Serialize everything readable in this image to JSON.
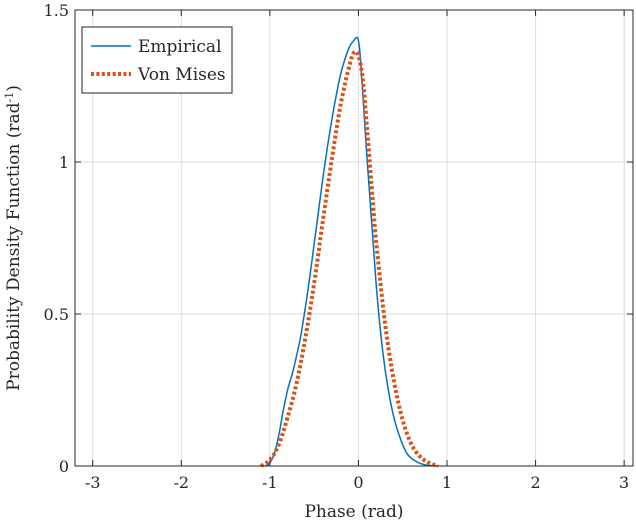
{
  "chart_data": {
    "type": "line",
    "xlabel": "Phase (rad)",
    "ylabel_main": "Probability Density Function (rad",
    "ylabel_sup": "-1",
    "ylabel_end": ")",
    "xlim": [
      -3.2,
      3.1
    ],
    "ylim": [
      0,
      1.5
    ],
    "xticks": [
      -3,
      -2,
      -1,
      0,
      1,
      2,
      3
    ],
    "xtick_labels": [
      "-3",
      "-2",
      "-1",
      "0",
      "1",
      "2",
      "3"
    ],
    "yticks": [
      0,
      0.5,
      1,
      1.5
    ],
    "ytick_labels": [
      "0",
      "0.5",
      "1",
      "1.5"
    ],
    "grid": true,
    "legend_position": "top-left",
    "series": [
      {
        "name": "Empirical",
        "color": "#0072BD",
        "style": "solid",
        "x": [
          -1.05,
          -1.0,
          -0.95,
          -0.9,
          -0.85,
          -0.8,
          -0.75,
          -0.7,
          -0.65,
          -0.6,
          -0.55,
          -0.5,
          -0.45,
          -0.4,
          -0.35,
          -0.3,
          -0.25,
          -0.2,
          -0.15,
          -0.1,
          -0.05,
          -0.02,
          0.0,
          0.02,
          0.05,
          0.1,
          0.15,
          0.2,
          0.25,
          0.3,
          0.35,
          0.4,
          0.45,
          0.5,
          0.55,
          0.6,
          0.65,
          0.7,
          0.75,
          0.8,
          0.85,
          0.9
        ],
        "y": [
          0.0,
          0.01,
          0.04,
          0.1,
          0.18,
          0.25,
          0.3,
          0.36,
          0.43,
          0.52,
          0.62,
          0.73,
          0.84,
          0.95,
          1.05,
          1.14,
          1.22,
          1.29,
          1.34,
          1.38,
          1.4,
          1.41,
          1.4,
          1.35,
          1.22,
          1.0,
          0.8,
          0.6,
          0.44,
          0.32,
          0.23,
          0.16,
          0.11,
          0.07,
          0.04,
          0.025,
          0.015,
          0.008,
          0.004,
          0.002,
          0.001,
          0.0
        ]
      },
      {
        "name": "Von Mises",
        "color": "#D95319",
        "style": "dotted",
        "x": [
          -1.1,
          -1.0,
          -0.9,
          -0.8,
          -0.7,
          -0.6,
          -0.5,
          -0.4,
          -0.3,
          -0.2,
          -0.1,
          -0.05,
          0.0,
          0.05,
          0.1,
          0.15,
          0.2,
          0.3,
          0.4,
          0.5,
          0.6,
          0.7,
          0.8,
          0.9
        ],
        "y": [
          0.0,
          0.02,
          0.07,
          0.16,
          0.27,
          0.42,
          0.6,
          0.81,
          1.01,
          1.19,
          1.32,
          1.36,
          1.35,
          1.27,
          1.1,
          0.92,
          0.74,
          0.47,
          0.28,
          0.15,
          0.07,
          0.03,
          0.01,
          0.0
        ]
      }
    ]
  }
}
